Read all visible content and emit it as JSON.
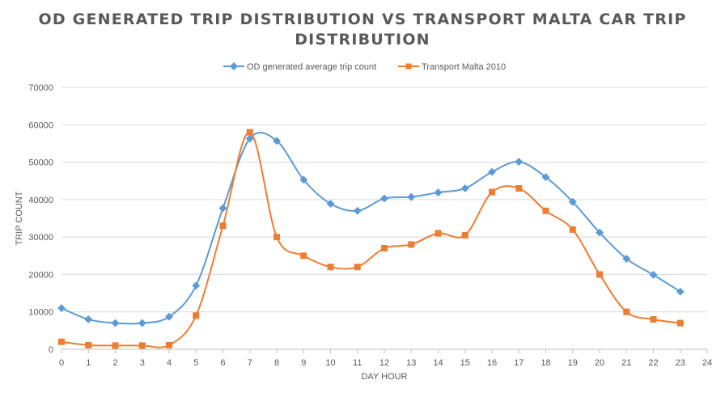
{
  "chart_data": {
    "type": "line",
    "title": "OD GENERATED TRIP DISTRIBUTION VS TRANSPORT MALTA CAR TRIP DISTRIBUTION",
    "title_lines": [
      "OD GENERATED TRIP DISTRIBUTION VS TRANSPORT MALTA CAR TRIP",
      "DISTRIBUTION"
    ],
    "xlabel": "DAY HOUR",
    "ylabel": "TRIP COUNT",
    "xlim": [
      0,
      24
    ],
    "ylim": [
      0,
      70000
    ],
    "x_ticks": [
      "0",
      "1",
      "2",
      "3",
      "4",
      "5",
      "6",
      "7",
      "8",
      "9",
      "10",
      "11",
      "12",
      "13",
      "14",
      "15",
      "16",
      "17",
      "18",
      "19",
      "20",
      "21",
      "22",
      "23",
      "24"
    ],
    "y_ticks": [
      "0",
      "10000",
      "20000",
      "30000",
      "40000",
      "50000",
      "60000",
      "70000"
    ],
    "grid": "horizontal",
    "legend_position": "top",
    "series": [
      {
        "name": "OD generated average trip count",
        "color": "#5B9BD5",
        "marker": "diamond",
        "x": [
          0,
          1,
          2,
          3,
          4,
          5,
          6,
          7,
          8,
          9,
          10,
          11,
          12,
          13,
          14,
          15,
          16,
          17,
          18,
          19,
          20,
          21,
          22,
          23
        ],
        "values": [
          11000,
          8000,
          7000,
          7000,
          8700,
          17000,
          37700,
          56300,
          55700,
          45300,
          38900,
          37000,
          40300,
          40700,
          41900,
          43000,
          47400,
          50100,
          46000,
          39400,
          31200,
          24200,
          19900,
          15400
        ]
      },
      {
        "name": "Transport Malta 2010",
        "color": "#ED7D31",
        "marker": "square",
        "x": [
          0,
          1,
          2,
          3,
          4,
          5,
          6,
          7,
          8,
          9,
          10,
          11,
          12,
          13,
          14,
          15,
          16,
          17,
          18,
          19,
          20,
          21,
          22,
          23
        ],
        "values": [
          2000,
          1100,
          1000,
          1000,
          1100,
          9000,
          33000,
          58000,
          30000,
          25000,
          22000,
          22000,
          27000,
          28000,
          31000,
          30500,
          42000,
          43000,
          37000,
          32000,
          20000,
          10000,
          8000,
          7000
        ]
      }
    ]
  }
}
